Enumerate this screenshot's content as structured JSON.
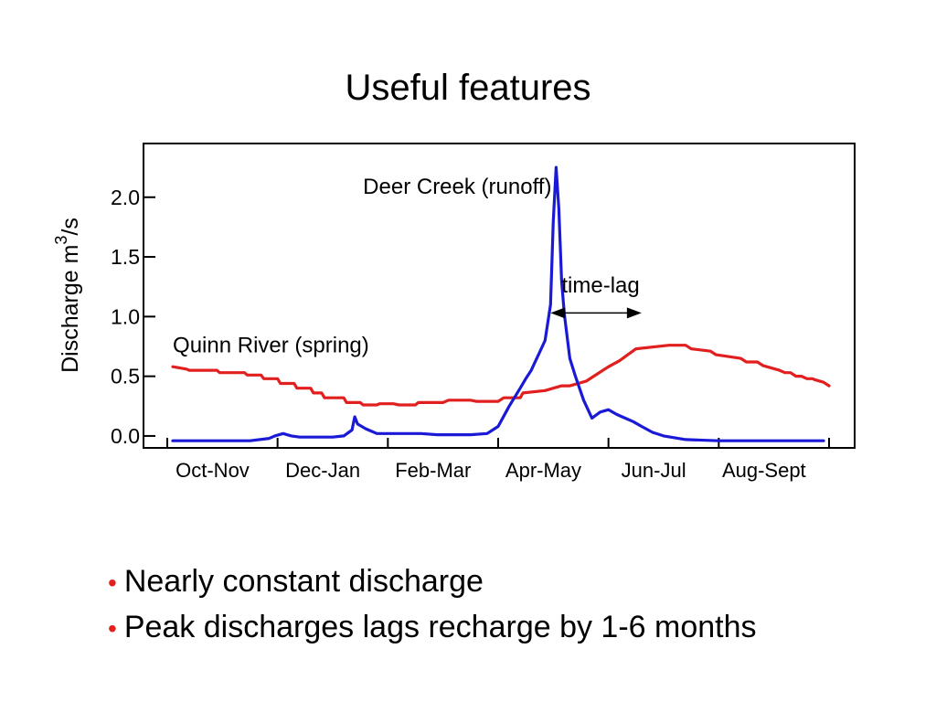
{
  "slide": {
    "title": "Useful features",
    "bullets": [
      "Nearly constant discharge",
      "Peak discharges lags recharge by 1-6 months"
    ],
    "bullet_color": "#e2211c"
  },
  "chart_data": {
    "type": "line",
    "title": "",
    "xlabel": "",
    "ylabel": "Discharge  m",
    "ylabel_superscript": "3",
    "ylabel_suffix": "/s",
    "ylim": [
      -0.1,
      2.45
    ],
    "yticks": [
      "0.0",
      "0.5",
      "1.0",
      "1.5",
      "2.0"
    ],
    "ytick_values": [
      0.0,
      0.5,
      1.0,
      1.5,
      2.0
    ],
    "xlim": [
      0,
      12
    ],
    "categories": [
      "Oct-Nov",
      "Dec-Jan",
      "Feb-Mar",
      "Apr-May",
      "Jun-Jul",
      "Aug-Sept"
    ],
    "grid": false,
    "annotations": [
      {
        "text": "Deer Creek (runoff)",
        "x": 3.55,
        "y": 2.03
      },
      {
        "text": "Quinn River (spring)",
        "x": 0.1,
        "y": 0.7
      },
      {
        "text": "time-lag",
        "x": 7.15,
        "y": 1.2
      }
    ],
    "time_lag_arrow": {
      "x_start": 6.95,
      "x_end": 8.6,
      "y": 1.03
    },
    "series": [
      {
        "color": "#e21f1f",
        "x": [
          0.1,
          0.35,
          0.4,
          0.9,
          0.95,
          1.4,
          1.45,
          1.7,
          1.75,
          2.0,
          2.05,
          2.3,
          2.35,
          2.6,
          2.65,
          2.8,
          2.85,
          3.2,
          3.25,
          3.5,
          3.55,
          3.8,
          3.85,
          4.1,
          4.2,
          4.5,
          4.55,
          5.0,
          5.1,
          5.5,
          5.6,
          6.0,
          6.1,
          6.4,
          6.45,
          6.85,
          7.0,
          7.15,
          7.3,
          7.6,
          7.8,
          8.0,
          8.2,
          8.35,
          8.5,
          9.1,
          9.2,
          9.4,
          9.5,
          9.85,
          9.95,
          10.4,
          10.5,
          10.7,
          10.8,
          11.1,
          11.2,
          11.3,
          11.4,
          11.5,
          11.6,
          11.7,
          11.75,
          11.9,
          12.0
        ],
        "y": [
          0.58,
          0.56,
          0.55,
          0.55,
          0.53,
          0.53,
          0.51,
          0.51,
          0.48,
          0.48,
          0.44,
          0.44,
          0.4,
          0.4,
          0.36,
          0.36,
          0.32,
          0.32,
          0.28,
          0.28,
          0.26,
          0.26,
          0.27,
          0.27,
          0.26,
          0.26,
          0.28,
          0.28,
          0.3,
          0.3,
          0.29,
          0.29,
          0.32,
          0.32,
          0.36,
          0.38,
          0.4,
          0.42,
          0.42,
          0.46,
          0.52,
          0.58,
          0.63,
          0.68,
          0.73,
          0.76,
          0.76,
          0.76,
          0.73,
          0.71,
          0.68,
          0.65,
          0.62,
          0.62,
          0.59,
          0.55,
          0.53,
          0.53,
          0.5,
          0.5,
          0.48,
          0.48,
          0.47,
          0.45,
          0.42
        ]
      },
      {
        "color": "#1a1ad6",
        "x": [
          0.1,
          0.5,
          1.0,
          1.5,
          1.85,
          1.95,
          2.1,
          2.25,
          2.4,
          2.6,
          2.8,
          3.0,
          3.2,
          3.35,
          3.4,
          3.45,
          3.6,
          3.8,
          4.0,
          4.3,
          4.6,
          4.9,
          5.2,
          5.5,
          5.8,
          6.0,
          6.2,
          6.4,
          6.5,
          6.6,
          6.65,
          6.75,
          6.85,
          6.95,
          7.0,
          7.05,
          7.1,
          7.15,
          7.2,
          7.3,
          7.4,
          7.55,
          7.7,
          7.85,
          8.0,
          8.15,
          8.3,
          8.45,
          8.6,
          8.8,
          9.0,
          9.4,
          10.0,
          10.5,
          11.0,
          11.5,
          11.9
        ],
        "y": [
          -0.04,
          -0.04,
          -0.04,
          -0.04,
          -0.02,
          0.0,
          0.02,
          0.0,
          -0.01,
          -0.01,
          -0.01,
          -0.01,
          0.0,
          0.05,
          0.16,
          0.1,
          0.06,
          0.02,
          0.02,
          0.02,
          0.02,
          0.01,
          0.01,
          0.01,
          0.02,
          0.08,
          0.25,
          0.4,
          0.48,
          0.55,
          0.6,
          0.7,
          0.8,
          1.1,
          1.8,
          2.25,
          1.9,
          1.3,
          1.02,
          0.65,
          0.5,
          0.3,
          0.15,
          0.2,
          0.22,
          0.18,
          0.15,
          0.12,
          0.08,
          0.03,
          0.0,
          -0.03,
          -0.04,
          -0.04,
          -0.04,
          -0.04,
          -0.04
        ]
      }
    ]
  }
}
